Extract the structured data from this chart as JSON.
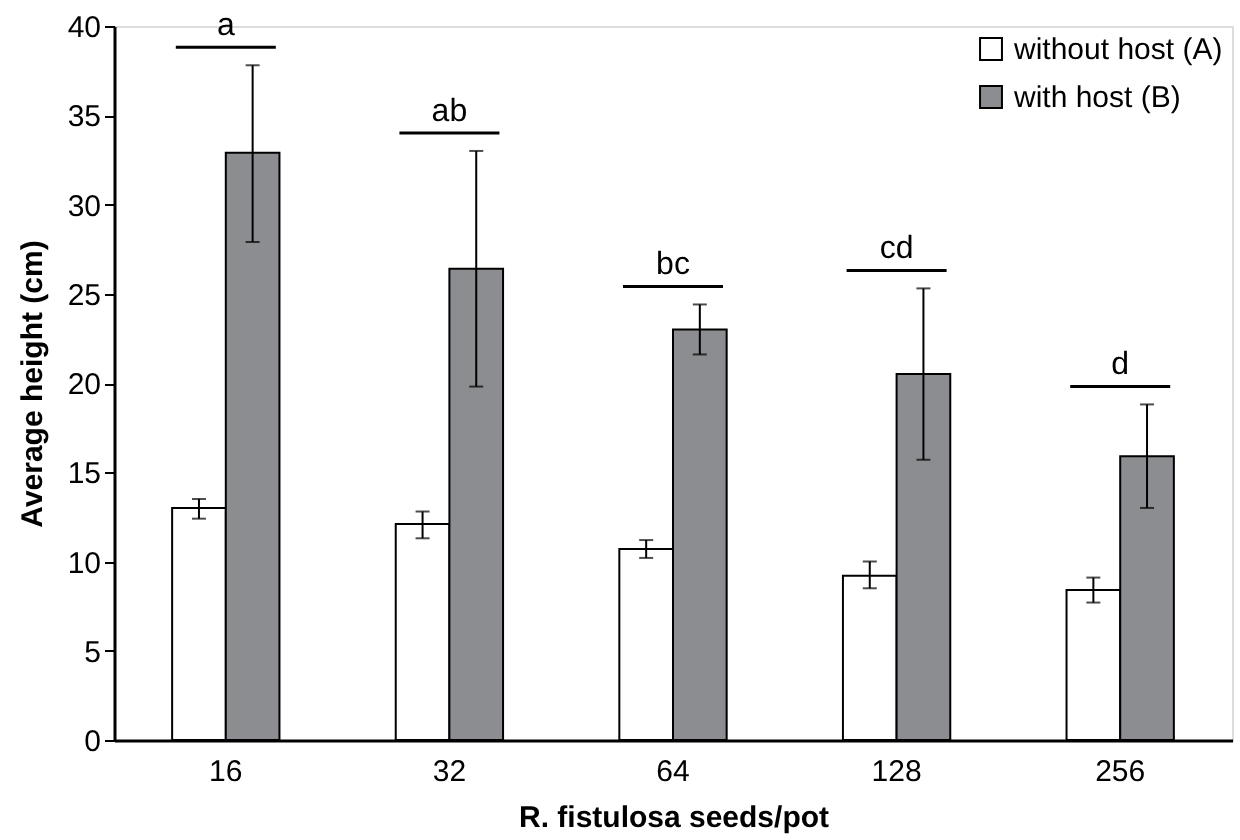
{
  "chart_data": {
    "type": "bar",
    "xlabel": "R. fistulosa seeds/pot",
    "ylabel": "Average height (cm)",
    "categories": [
      "16",
      "32",
      "64",
      "128",
      "256"
    ],
    "series": [
      {
        "name": "without host (A)",
        "color": "#ffffff",
        "values": [
          13.0,
          12.1,
          10.7,
          9.2,
          8.4
        ],
        "errors": [
          [
            12.4,
            13.5
          ],
          [
            11.3,
            12.8
          ],
          [
            10.2,
            11.2
          ],
          [
            8.5,
            10.0
          ],
          [
            7.7,
            9.1
          ]
        ]
      },
      {
        "name": "with host (B)",
        "color": "#8c8d90",
        "values": [
          32.9,
          26.4,
          23.0,
          20.5,
          15.9
        ],
        "errors": [
          [
            27.9,
            37.8
          ],
          [
            19.8,
            33.0
          ],
          [
            21.6,
            24.4
          ],
          [
            15.7,
            25.3
          ],
          [
            13.0,
            18.8
          ]
        ]
      }
    ],
    "ylim": [
      0,
      40
    ],
    "yticks": [
      0,
      5,
      10,
      15,
      20,
      25,
      30,
      35,
      40
    ],
    "grid": false,
    "legend": "top right",
    "annotations": [
      "a",
      "ab",
      "bc",
      "cd",
      "d"
    ]
  }
}
